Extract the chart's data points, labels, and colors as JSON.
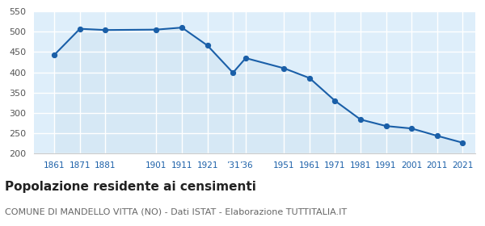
{
  "years": [
    1861,
    1871,
    1881,
    1901,
    1911,
    1921,
    1931,
    1936,
    1951,
    1961,
    1971,
    1981,
    1991,
    2001,
    2011,
    2021
  ],
  "population": [
    443,
    507,
    504,
    505,
    510,
    466,
    399,
    435,
    410,
    386,
    330,
    284,
    268,
    262,
    244,
    227
  ],
  "line_color": "#1a5fa8",
  "fill_color": "#d6e8f5",
  "marker_color": "#1a5fa8",
  "background_color": "#ffffff",
  "plot_bg_color": "#deeefa",
  "grid_color": "#ffffff",
  "ylim": [
    200,
    550
  ],
  "yticks": [
    200,
    250,
    300,
    350,
    400,
    450,
    500,
    550
  ],
  "title": "Popolazione residente ai censimenti",
  "subtitle": "COMUNE DI MANDELLO VITTA (NO) - Dati ISTAT - Elaborazione TUTTITALIA.IT",
  "title_fontsize": 11,
  "subtitle_fontsize": 8,
  "tick_label_color": "#1a5fa8",
  "tick_fontsize": 7.5,
  "ytick_color": "#555555",
  "ytick_fontsize": 8
}
